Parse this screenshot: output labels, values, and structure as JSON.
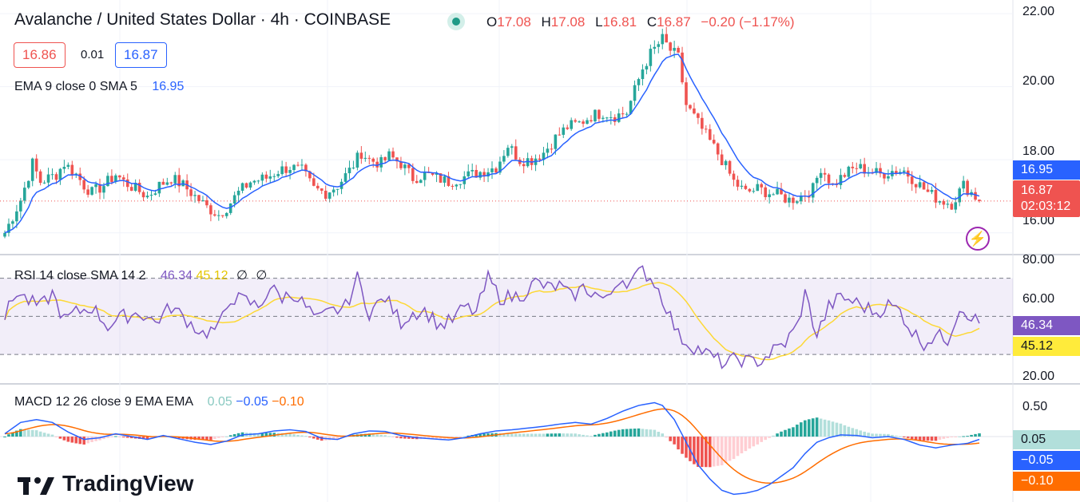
{
  "header": {
    "title": "Avalanche / United States Dollar · 4h · COINBASE",
    "ohlc": {
      "o_label": "O",
      "o": "17.08",
      "h_label": "H",
      "h": "17.08",
      "l_label": "L",
      "l": "16.81",
      "c_label": "C",
      "c": "16.87",
      "change": "−0.20 (−1.17%)"
    },
    "bid": "16.86",
    "spread": "0.01",
    "ask": "16.87"
  },
  "indicators": {
    "ema": {
      "label": "EMA 9 close 0 SMA 5",
      "value": "16.95"
    },
    "rsi": {
      "label": "RSI 14 close SMA 14 2",
      "value": "46.34",
      "sma": "45.12",
      "extra1": "∅",
      "extra2": "∅"
    },
    "macd": {
      "label": "MACD 12 26 close 9 EMA EMA",
      "hist": "0.05",
      "macd": "−0.05",
      "signal": "−0.10"
    }
  },
  "price_axis": {
    "ticks": [
      "22.00",
      "20.00",
      "18.00",
      "16.00"
    ],
    "ema_label": "16.95",
    "last_price": "16.87",
    "countdown": "02:03:12"
  },
  "rsi_axis": {
    "ticks": [
      "80.00",
      "60.00",
      "20.00"
    ],
    "rsi_label": "46.34",
    "sma_label": "45.12"
  },
  "macd_axis": {
    "ticks": [
      "0.50"
    ],
    "hist_label": "0.05",
    "macd_label": "−0.05",
    "signal_label": "−0.10"
  },
  "brand": {
    "name": "TradingView"
  },
  "colors": {
    "up": "#26a69a",
    "down": "#ef5350",
    "ema": "#2962ff",
    "rsi": "#7e57c2",
    "rsi_sma": "#fdd835",
    "macd": "#2962ff",
    "signal": "#ff6d00",
    "hist_up_strong": "#26a69a",
    "hist_up_weak": "#b2dfdb",
    "hist_down_strong": "#ef5350",
    "hist_down_weak": "#ffcdd2"
  },
  "chart_data": {
    "type": "candlestick",
    "title": "Avalanche / United States Dollar · 4h · COINBASE",
    "ylim": [
      15.6,
      22.2
    ],
    "price_waypoints": [
      [
        0,
        16.0
      ],
      [
        4,
        16.9
      ],
      [
        7,
        17.9
      ],
      [
        9,
        17.4
      ],
      [
        13,
        17.6
      ],
      [
        15,
        17.9
      ],
      [
        18,
        17.6
      ],
      [
        20,
        17.3
      ],
      [
        22,
        17.1
      ],
      [
        25,
        17.3
      ],
      [
        28,
        17.6
      ],
      [
        30,
        17.4
      ],
      [
        33,
        17.2
      ],
      [
        36,
        17.0
      ],
      [
        39,
        17.3
      ],
      [
        42,
        17.5
      ],
      [
        45,
        17.3
      ],
      [
        48,
        17.0
      ],
      [
        51,
        16.7
      ],
      [
        54,
        16.5
      ],
      [
        56,
        16.7
      ],
      [
        59,
        17.1
      ],
      [
        62,
        17.4
      ],
      [
        66,
        17.5
      ],
      [
        69,
        17.7
      ],
      [
        72,
        17.8
      ],
      [
        75,
        17.7
      ],
      [
        78,
        17.2
      ],
      [
        81,
        17.1
      ],
      [
        84,
        17.3
      ],
      [
        87,
        17.7
      ],
      [
        90,
        18.2
      ],
      [
        92,
        18.0
      ],
      [
        95,
        17.9
      ],
      [
        97,
        18.1
      ],
      [
        100,
        17.9
      ],
      [
        103,
        17.5
      ],
      [
        106,
        17.6
      ],
      [
        109,
        17.5
      ],
      [
        112,
        17.4
      ],
      [
        115,
        17.5
      ],
      [
        118,
        17.6
      ],
      [
        121,
        17.7
      ],
      [
        124,
        17.8
      ],
      [
        127,
        18.4
      ],
      [
        130,
        18.0
      ],
      [
        133,
        18.0
      ],
      [
        136,
        18.2
      ],
      [
        139,
        18.6
      ],
      [
        142,
        18.9
      ],
      [
        145,
        19.0
      ],
      [
        148,
        19.2
      ],
      [
        151,
        19.3
      ],
      [
        154,
        19.2
      ],
      [
        157,
        19.3
      ],
      [
        159,
        19.9
      ],
      [
        161,
        20.5
      ],
      [
        163,
        20.9
      ],
      [
        166,
        21.3
      ],
      [
        168,
        21.0
      ],
      [
        170,
        20.8
      ],
      [
        172,
        19.5
      ],
      [
        175,
        19.0
      ],
      [
        178,
        18.5
      ],
      [
        181,
        18.0
      ],
      [
        184,
        17.4
      ],
      [
        187,
        17.1
      ],
      [
        190,
        17.2
      ],
      [
        193,
        17.1
      ],
      [
        196,
        17.0
      ],
      [
        198,
        16.9
      ],
      [
        201,
        17.0
      ],
      [
        204,
        17.2
      ],
      [
        206,
        17.8
      ],
      [
        209,
        17.3
      ],
      [
        212,
        17.6
      ],
      [
        215,
        17.8
      ],
      [
        218,
        17.7
      ],
      [
        221,
        17.6
      ],
      [
        224,
        17.7
      ],
      [
        227,
        17.7
      ],
      [
        230,
        17.4
      ],
      [
        233,
        17.1
      ],
      [
        236,
        16.9
      ],
      [
        239,
        16.8
      ],
      [
        242,
        17.3
      ],
      [
        244,
        17.1
      ],
      [
        246,
        16.87
      ]
    ],
    "rsi_waypoints": [
      [
        0,
        50
      ],
      [
        3,
        63
      ],
      [
        6,
        58
      ],
      [
        9,
        55
      ],
      [
        12,
        62
      ],
      [
        15,
        48
      ],
      [
        18,
        52
      ],
      [
        22,
        55
      ],
      [
        26,
        45
      ],
      [
        30,
        50
      ],
      [
        34,
        52
      ],
      [
        38,
        47
      ],
      [
        42,
        55
      ],
      [
        46,
        48
      ],
      [
        50,
        41
      ],
      [
        54,
        44
      ],
      [
        57,
        60
      ],
      [
        61,
        58
      ],
      [
        64,
        55
      ],
      [
        67,
        65
      ],
      [
        70,
        60
      ],
      [
        73,
        62
      ],
      [
        76,
        55
      ],
      [
        79,
        48
      ],
      [
        82,
        52
      ],
      [
        86,
        55
      ],
      [
        89,
        70
      ],
      [
        92,
        52
      ],
      [
        96,
        60
      ],
      [
        100,
        47
      ],
      [
        103,
        52
      ],
      [
        106,
        53
      ],
      [
        110,
        45
      ],
      [
        113,
        48
      ],
      [
        116,
        55
      ],
      [
        119,
        52
      ],
      [
        122,
        70
      ],
      [
        125,
        60
      ],
      [
        128,
        60
      ],
      [
        131,
        62
      ],
      [
        134,
        68
      ],
      [
        137,
        65
      ],
      [
        140,
        66
      ],
      [
        143,
        60
      ],
      [
        146,
        65
      ],
      [
        149,
        62
      ],
      [
        152,
        58
      ],
      [
        155,
        70
      ],
      [
        158,
        68
      ],
      [
        161,
        74
      ],
      [
        164,
        68
      ],
      [
        167,
        55
      ],
      [
        170,
        40
      ],
      [
        173,
        35
      ],
      [
        176,
        32
      ],
      [
        179,
        28
      ],
      [
        182,
        25
      ],
      [
        185,
        28
      ],
      [
        188,
        26
      ],
      [
        191,
        27
      ],
      [
        194,
        32
      ],
      [
        197,
        36
      ],
      [
        200,
        45
      ],
      [
        202,
        62
      ],
      [
        205,
        40
      ],
      [
        208,
        55
      ],
      [
        211,
        60
      ],
      [
        214,
        58
      ],
      [
        217,
        55
      ],
      [
        220,
        52
      ],
      [
        223,
        56
      ],
      [
        226,
        53
      ],
      [
        229,
        42
      ],
      [
        232,
        36
      ],
      [
        235,
        40
      ],
      [
        238,
        38
      ],
      [
        241,
        55
      ],
      [
        243,
        52
      ],
      [
        246,
        46.34
      ]
    ],
    "macd_waypoints": [
      [
        0,
        0.05
      ],
      [
        4,
        0.25
      ],
      [
        8,
        0.3
      ],
      [
        12,
        0.25
      ],
      [
        16,
        0.08
      ],
      [
        20,
        -0.05
      ],
      [
        24,
        -0.02
      ],
      [
        28,
        0.05
      ],
      [
        32,
        0.0
      ],
      [
        36,
        -0.05
      ],
      [
        40,
        0.02
      ],
      [
        44,
        -0.04
      ],
      [
        48,
        -0.1
      ],
      [
        52,
        -0.14
      ],
      [
        56,
        -0.08
      ],
      [
        60,
        0.03
      ],
      [
        64,
        0.05
      ],
      [
        68,
        0.1
      ],
      [
        72,
        0.12
      ],
      [
        76,
        0.09
      ],
      [
        80,
        -0.03
      ],
      [
        84,
        -0.05
      ],
      [
        88,
        0.05
      ],
      [
        92,
        0.1
      ],
      [
        96,
        0.09
      ],
      [
        100,
        0.02
      ],
      [
        104,
        -0.02
      ],
      [
        108,
        -0.04
      ],
      [
        112,
        -0.06
      ],
      [
        116,
        -0.02
      ],
      [
        120,
        0.05
      ],
      [
        124,
        0.1
      ],
      [
        128,
        0.12
      ],
      [
        132,
        0.15
      ],
      [
        136,
        0.18
      ],
      [
        140,
        0.22
      ],
      [
        144,
        0.25
      ],
      [
        148,
        0.22
      ],
      [
        152,
        0.32
      ],
      [
        156,
        0.45
      ],
      [
        160,
        0.55
      ],
      [
        164,
        0.6
      ],
      [
        166,
        0.55
      ],
      [
        169,
        0.3
      ],
      [
        172,
        -0.1
      ],
      [
        175,
        -0.5
      ],
      [
        178,
        -0.75
      ],
      [
        181,
        -0.95
      ],
      [
        184,
        -1.02
      ],
      [
        187,
        -1.0
      ],
      [
        190,
        -0.95
      ],
      [
        193,
        -0.85
      ],
      [
        196,
        -0.7
      ],
      [
        199,
        -0.55
      ],
      [
        202,
        -0.3
      ],
      [
        205,
        -0.1
      ],
      [
        208,
        -0.02
      ],
      [
        211,
        0.03
      ],
      [
        215,
        0.02
      ],
      [
        219,
        -0.02
      ],
      [
        223,
        0.0
      ],
      [
        227,
        -0.05
      ],
      [
        231,
        -0.15
      ],
      [
        235,
        -0.2
      ],
      [
        239,
        -0.15
      ],
      [
        243,
        -0.12
      ],
      [
        246,
        -0.05
      ]
    ],
    "rsi_levels": [
      70,
      50,
      30
    ],
    "rsi_ylim": [
      15,
      82
    ],
    "macd_ylim": [
      -1.1,
      0.72
    ]
  }
}
